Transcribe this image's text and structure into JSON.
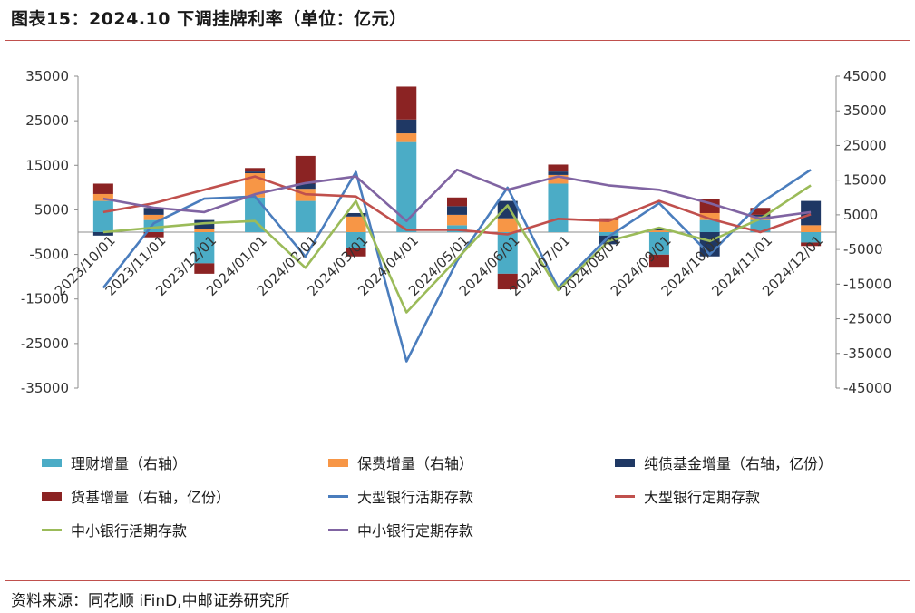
{
  "title": "图表15：2024.10 下调挂牌利率（单位：亿元）",
  "source": "资料来源：同花顺 iFinD,中邮证券研究所",
  "chart_data": {
    "type": "bar+line",
    "categories": [
      "2023/10/01",
      "2023/11/01",
      "2023/12/01",
      "2024/01/01",
      "2024/02/01",
      "2024/03/01",
      "2024/04/01",
      "2024/05/01",
      "2024/06/01",
      "2024/07/01",
      "2024/08/01",
      "2024/09/01",
      "2024/10/01",
      "2024/11/01",
      "2024/12/01"
    ],
    "y_left": {
      "ticks": [
        35000,
        25000,
        15000,
        5000,
        -5000,
        -15000,
        -25000,
        -35000
      ],
      "ylim": [
        -35000,
        35000
      ]
    },
    "y_right": {
      "ticks": [
        45000,
        35000,
        25000,
        15000,
        5000,
        -5000,
        -15000,
        -25000,
        -35000,
        -45000
      ],
      "ylim": [
        -45000,
        45000
      ]
    },
    "bar_series": [
      {
        "name": "理财增量（右轴）",
        "color": "#4bacc6",
        "values": [
          9000,
          3500,
          -9000,
          10000,
          9000,
          -4500,
          26000,
          2000,
          -12000,
          14000,
          -1000,
          -6500,
          3500,
          3500,
          -3000
        ]
      },
      {
        "name": "保费增量（右轴）",
        "color": "#f79646",
        "values": [
          2000,
          1500,
          1000,
          7000,
          3500,
          4500,
          2500,
          3000,
          4000,
          2500,
          3500,
          500,
          2000,
          1000,
          2000
        ]
      },
      {
        "name": "纯债基金增量（右轴，亿份）",
        "color": "#1f3864",
        "values": [
          -1000,
          2000,
          2500,
          500,
          1500,
          1000,
          4000,
          2500,
          5000,
          1000,
          -2500,
          500,
          -7000,
          500,
          7000
        ]
      },
      {
        "name": "货基增量（右轴，亿份）",
        "color": "#8b2323",
        "values": [
          3000,
          -1500,
          -3000,
          1000,
          8000,
          -2500,
          9500,
          2500,
          -4500,
          2000,
          500,
          -3500,
          4000,
          2000,
          -1000
        ]
      }
    ],
    "line_series": [
      {
        "name": "大型银行活期存款",
        "color": "#4a7dbd",
        "values": [
          -12500,
          2000,
          7500,
          8000,
          -5500,
          13500,
          -29000,
          -6500,
          10000,
          -12500,
          -1000,
          6500,
          -5000,
          6500,
          14000
        ]
      },
      {
        "name": "大型银行定期存款",
        "color": "#c0504d",
        "values": [
          4500,
          6500,
          9500,
          12500,
          8500,
          8000,
          500,
          500,
          -500,
          3000,
          2500,
          7000,
          3000,
          0,
          4000
        ]
      },
      {
        "name": "中小银行活期存款",
        "color": "#9bbb59",
        "values": [
          0,
          1000,
          2000,
          2500,
          -8000,
          7000,
          -18000,
          -6000,
          6000,
          -13000,
          -2000,
          1000,
          -2000,
          3000,
          10500
        ]
      },
      {
        "name": "中小银行定期存款",
        "color": "#8064a2",
        "values": [
          7500,
          5500,
          4500,
          8500,
          11000,
          12500,
          2500,
          14000,
          9500,
          12500,
          10500,
          9500,
          6500,
          3000,
          4500
        ]
      }
    ]
  }
}
